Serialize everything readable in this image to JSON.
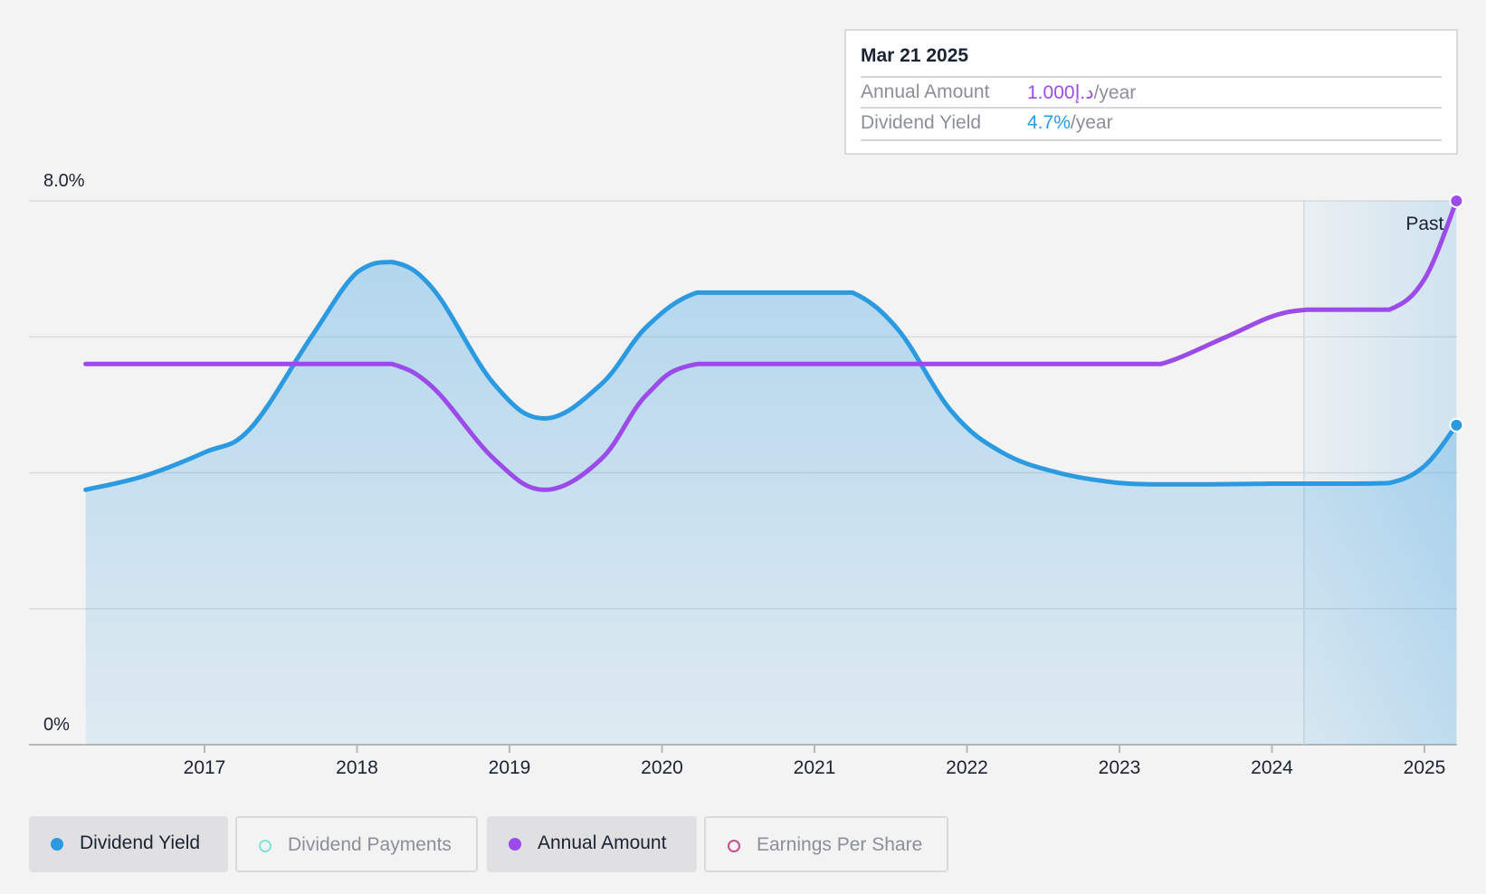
{
  "chart_data": {
    "type": "area",
    "ylim": [
      0,
      8
    ],
    "y_tick_labels": [
      "8.0%",
      "0%"
    ],
    "x_tick_labels": [
      "2017",
      "2018",
      "2019",
      "2020",
      "2021",
      "2022",
      "2023",
      "2024",
      "2025"
    ],
    "grid": true,
    "past_label": "Past",
    "series": [
      {
        "name": "Dividend Yield",
        "color": "#2b9ae1",
        "x": [
          2016.22,
          2016.6,
          2017.0,
          2017.3,
          2017.7,
          2018.0,
          2018.23,
          2018.5,
          2018.9,
          2019.23,
          2019.6,
          2019.9,
          2020.23,
          2020.6,
          2021.0,
          2021.25,
          2021.55,
          2021.9,
          2022.23,
          2022.6,
          2023.0,
          2023.23,
          2023.6,
          2024.0,
          2024.5,
          2024.77,
          2025.0,
          2025.21
        ],
        "values": [
          3.75,
          3.95,
          4.3,
          4.65,
          6.0,
          6.95,
          7.1,
          6.7,
          5.3,
          4.8,
          5.3,
          6.15,
          6.65,
          6.65,
          6.65,
          6.65,
          6.1,
          4.9,
          4.3,
          4.0,
          3.85,
          3.83,
          3.83,
          3.84,
          3.84,
          3.85,
          4.1,
          4.7
        ]
      },
      {
        "name": "Annual Amount",
        "color": "#9b4ce8",
        "x": [
          2016.22,
          2017.0,
          2018.0,
          2018.23,
          2018.5,
          2018.9,
          2019.23,
          2019.6,
          2019.9,
          2020.23,
          2021.0,
          2022.0,
          2023.0,
          2023.27,
          2023.7,
          2024.0,
          2024.23,
          2024.5,
          2024.77,
          2025.0,
          2025.21
        ],
        "values": [
          5.6,
          5.6,
          5.6,
          5.6,
          5.25,
          4.2,
          3.75,
          4.2,
          5.15,
          5.6,
          5.6,
          5.6,
          5.6,
          5.6,
          6.0,
          6.3,
          6.4,
          6.4,
          6.4,
          6.85,
          8.0
        ]
      }
    ],
    "legend": {
      "position": "bottom-left",
      "items": [
        {
          "label": "Dividend Yield",
          "active": true,
          "color": "#2b9ae1",
          "marker": "filled"
        },
        {
          "label": "Dividend Payments",
          "active": false,
          "color": "#7fe3d7",
          "marker": "hollow"
        },
        {
          "label": "Annual Amount",
          "active": true,
          "color": "#9b4ce8",
          "marker": "filled"
        },
        {
          "label": "Earnings Per Share",
          "active": false,
          "color": "#c6508a",
          "marker": "hollow"
        }
      ]
    }
  },
  "tooltip": {
    "date": "Mar 21 2025",
    "rows": [
      {
        "label": "Annual Amount",
        "value": "1.000د.إ",
        "suffix": "/year",
        "color": "#9b4ce8"
      },
      {
        "label": "Dividend Yield",
        "value": "4.7%",
        "suffix": "/year",
        "color": "#2b9ae1"
      }
    ]
  }
}
